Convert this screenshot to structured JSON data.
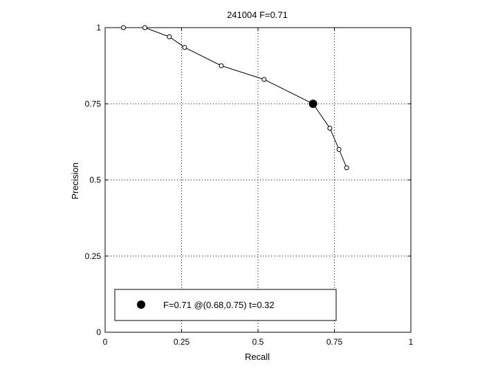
{
  "chart_data": {
    "type": "line",
    "title": "241004 F=0.71",
    "xlabel": "Recall",
    "ylabel": "Precision",
    "xlim": [
      0,
      1
    ],
    "ylim": [
      0,
      1
    ],
    "xticks": [
      "0",
      "0.25",
      "0.5",
      "0.75",
      "1"
    ],
    "yticks": [
      "0",
      "0.25",
      "0.5",
      "0.75",
      "1"
    ],
    "grid": true,
    "series": [
      {
        "points": [
          {
            "x": 0.06,
            "y": 1.0
          },
          {
            "x": 0.13,
            "y": 1.0
          },
          {
            "x": 0.21,
            "y": 0.97
          },
          {
            "x": 0.26,
            "y": 0.935
          },
          {
            "x": 0.38,
            "y": 0.875
          },
          {
            "x": 0.52,
            "y": 0.83
          },
          {
            "x": 0.68,
            "y": 0.75
          },
          {
            "x": 0.735,
            "y": 0.67
          },
          {
            "x": 0.765,
            "y": 0.6
          },
          {
            "x": 0.79,
            "y": 0.54
          }
        ]
      }
    ],
    "highlight": {
      "x": 0.68,
      "y": 0.75
    },
    "legend": {
      "placement": "bottom-left",
      "label": "F=0.71 @(0.68,0.75) t=0.32"
    }
  }
}
